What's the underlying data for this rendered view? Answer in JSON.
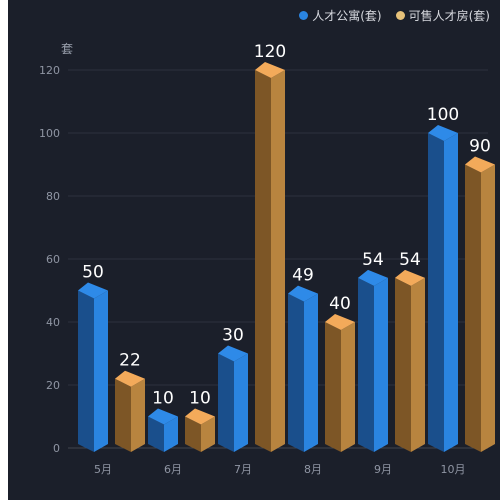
{
  "colors": {
    "background": "#1b1f2a",
    "grid": "#2c313d",
    "axis": "#40454f",
    "tick_text": "#8f95a3",
    "label_text": "#ffffff",
    "series_a_front": "#2a84e0",
    "series_a_side": "#1a4f8c",
    "series_a_top": "#2e8ae8",
    "series_b_front": "#b8843f",
    "series_b_side": "#7d5626",
    "series_b_top": "#f3aa5a"
  },
  "chart_data": {
    "type": "bar",
    "unit_label": "套",
    "categories": [
      "5月",
      "6月",
      "7月",
      "8月",
      "9月",
      "10月"
    ],
    "series": [
      {
        "name": "人才公寓(套)",
        "values": [
          50,
          10,
          30,
          49,
          54,
          100
        ],
        "legend_color": "#2a84e0"
      },
      {
        "name": "可售人才房(套)",
        "values": [
          22,
          10,
          120,
          40,
          54,
          90
        ],
        "legend_color": "#e7c27a"
      }
    ],
    "ylim": [
      0,
      120
    ],
    "yticks": [
      0,
      20,
      40,
      60,
      80,
      100,
      120
    ],
    "grid": true,
    "legend_position": "top-right",
    "style": "3d-bar"
  }
}
